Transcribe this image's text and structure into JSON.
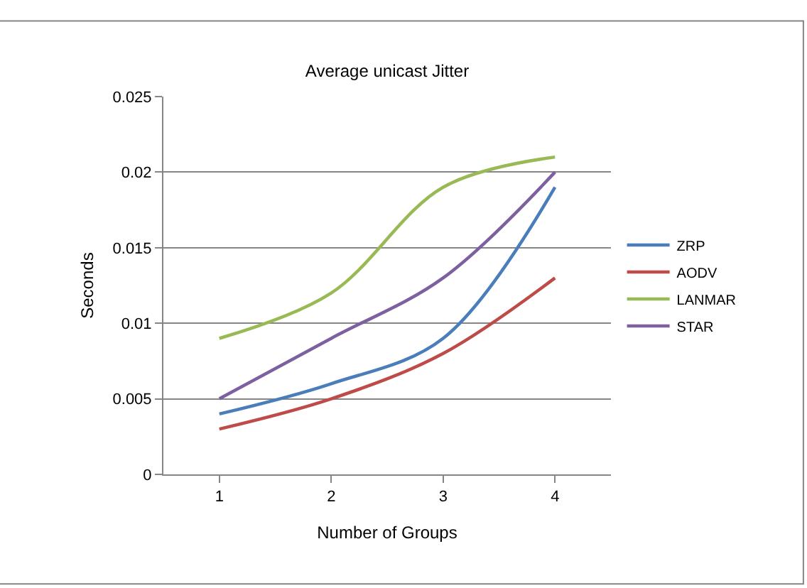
{
  "chart_data": {
    "type": "line",
    "title": "Average unicast Jitter",
    "xlabel": "Number of Groups",
    "ylabel": "Seconds",
    "categories": [
      "1",
      "2",
      "3",
      "4"
    ],
    "series": [
      {
        "name": "ZRP",
        "color": "#4a7ebb",
        "values": [
          0.004,
          0.006,
          0.009,
          0.019
        ]
      },
      {
        "name": "AODV",
        "color": "#be4b48",
        "values": [
          0.003,
          0.005,
          0.008,
          0.013
        ]
      },
      {
        "name": "LANMAR",
        "color": "#98b954",
        "values": [
          0.009,
          0.012,
          0.019,
          0.021
        ]
      },
      {
        "name": "STAR",
        "color": "#7d60a0",
        "values": [
          0.005,
          0.009,
          0.013,
          0.02
        ]
      }
    ],
    "ylim": [
      0,
      0.025
    ],
    "yticks": [
      0,
      0.005,
      0.01,
      0.015,
      0.02,
      0.025
    ],
    "grid": "y",
    "legend": "right",
    "marker": "none",
    "line_style": "solid"
  }
}
